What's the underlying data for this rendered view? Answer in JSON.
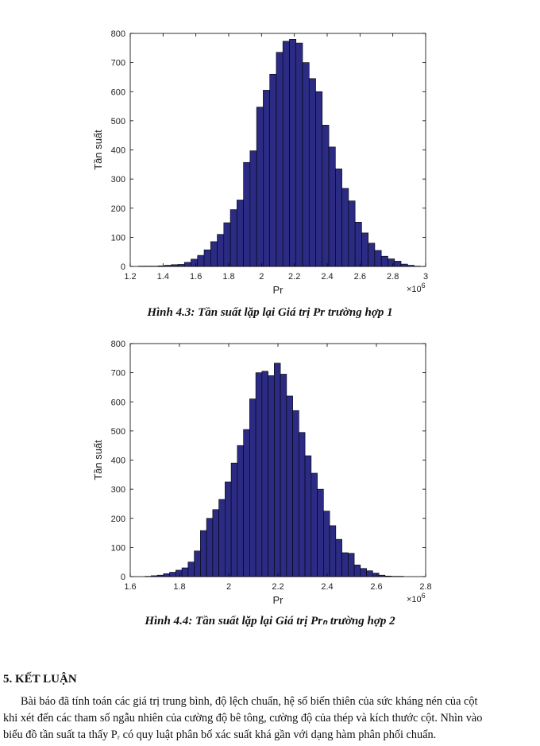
{
  "chart_data": [
    {
      "type": "bar",
      "xlabel": "Pr",
      "ylabel": "Tần suất",
      "x_multiplier": "×10^6",
      "xlim": [
        1.2,
        3.0
      ],
      "ylim": [
        0,
        800
      ],
      "xticks": [
        1.2,
        1.4,
        1.6,
        1.8,
        2.0,
        2.2,
        2.4,
        2.6,
        2.8,
        3.0
      ],
      "yticks": [
        0,
        100,
        200,
        300,
        400,
        500,
        600,
        700,
        800
      ],
      "bin_start": 1.25,
      "bin_width": 0.04,
      "values": [
        1,
        1,
        1,
        2,
        4,
        6,
        7,
        14,
        25,
        38,
        57,
        85,
        110,
        150,
        195,
        228,
        357,
        397,
        547,
        605,
        660,
        735,
        773,
        780,
        767,
        700,
        645,
        600,
        485,
        410,
        335,
        268,
        225,
        152,
        115,
        80,
        55,
        35,
        26,
        18,
        8,
        4,
        1
      ],
      "grid": false,
      "bar_color": "#2b2b84"
    },
    {
      "type": "bar",
      "xlabel": "Pr",
      "ylabel": "Tần suất",
      "x_multiplier": "×10^6",
      "xlim": [
        1.6,
        2.8
      ],
      "ylim": [
        0,
        800
      ],
      "xticks": [
        1.6,
        1.8,
        2.0,
        2.2,
        2.4,
        2.6,
        2.8
      ],
      "yticks": [
        0,
        100,
        200,
        300,
        400,
        500,
        600,
        700,
        800
      ],
      "bin_start": 1.66,
      "bin_width": 0.025,
      "values": [
        1,
        3,
        5,
        10,
        15,
        22,
        30,
        50,
        88,
        158,
        200,
        230,
        265,
        325,
        390,
        450,
        505,
        610,
        700,
        705,
        690,
        733,
        695,
        620,
        570,
        495,
        415,
        355,
        300,
        225,
        175,
        128,
        82,
        80,
        40,
        28,
        20,
        12,
        5,
        2,
        1,
        1
      ],
      "grid": false,
      "bar_color": "#2b2b84"
    }
  ],
  "captions": [
    "Hình 4.3: Tần suất lặp lại Giá trị Pr trường hợp 1",
    "Hình 4.4: Tần suất lặp lại Giá trị Prₙ trường hợp 2"
  ],
  "conclusion": {
    "heading": "5. KẾT LUẬN",
    "line1": "Bài báo đã tính toán các giá trị trung bình, độ lệch chuẩn, hệ số biến thiên của sức kháng nén của cột",
    "line2": "khi xét đến các tham số ngẫu nhiên của cường độ bê tông, cường độ của thép và kích thước cột. Nhìn vào",
    "line3": "biểu đồ tần suất ta thấy Pᵣ có quy luật phân bố xác suất khá gần với dạng hàm phân phối chuẩn."
  }
}
